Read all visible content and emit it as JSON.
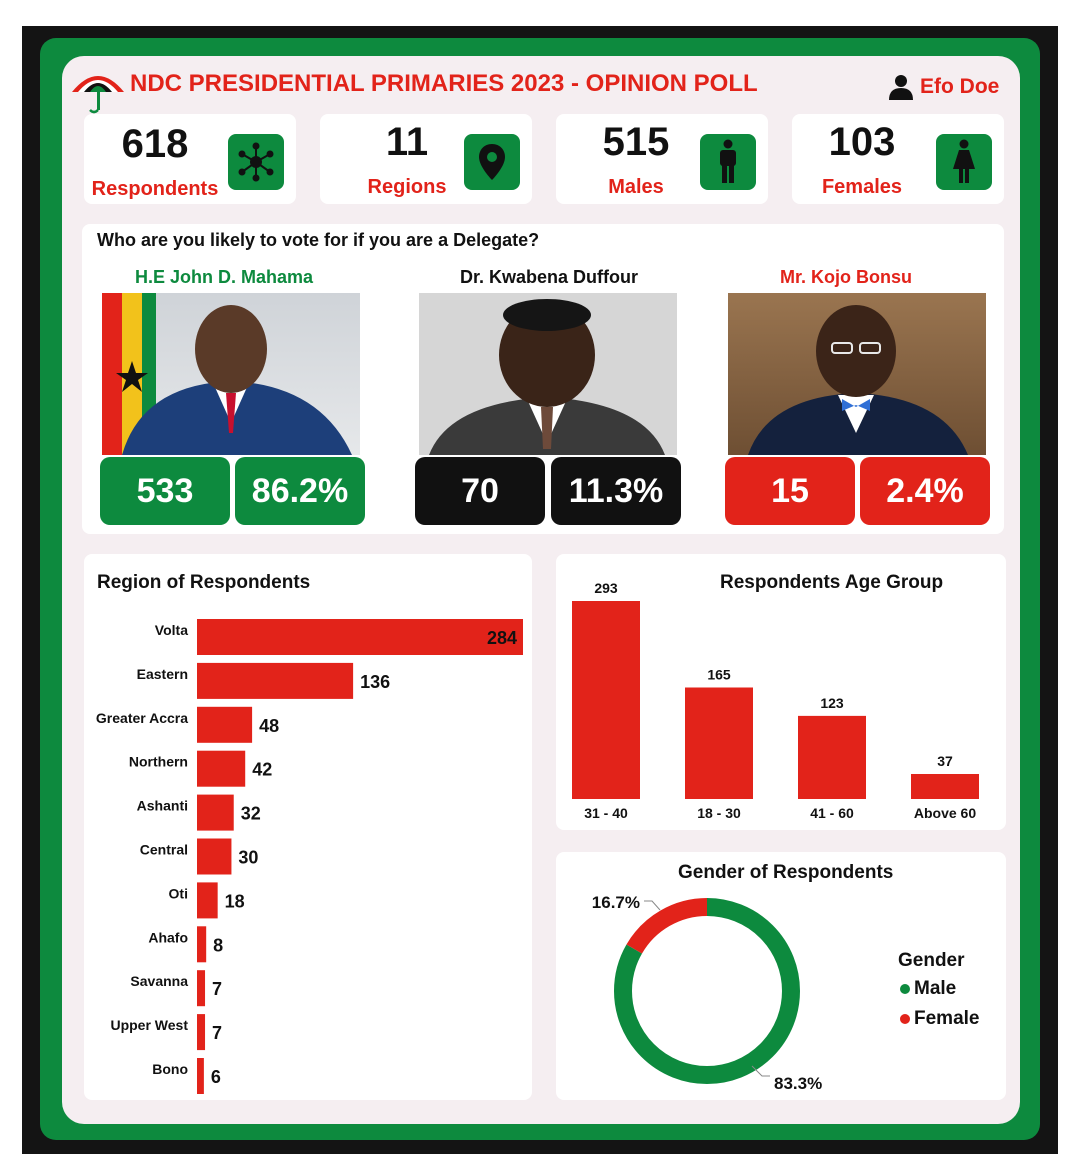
{
  "header": {
    "title": "NDC PRESIDENTIAL PRIMARIES 2023 - OPINION POLL",
    "user_name": "Efo Doe"
  },
  "kpis": [
    {
      "value": "618",
      "label": "Respondents",
      "icon": "network-icon"
    },
    {
      "value": "11",
      "label": "Regions",
      "icon": "map-pin-icon"
    },
    {
      "value": "515",
      "label": "Males",
      "icon": "male-icon"
    },
    {
      "value": "103",
      "label": "Females",
      "icon": "female-icon"
    }
  ],
  "question": "Who are you likely to vote for if you are a Delegate?",
  "candidates": [
    {
      "name": "H.E John D. Mahama",
      "votes": "533",
      "percent": "86.2%",
      "color": "#0d8a3e"
    },
    {
      "name": "Dr. Kwabena Duffour",
      "votes": "70",
      "percent": "11.3%",
      "color": "#111111"
    },
    {
      "name": "Mr. Kojo Bonsu",
      "votes": "15",
      "percent": "2.4%",
      "color": "#e2231a"
    }
  ],
  "colors": {
    "green": "#0d8a3e",
    "red": "#e2231a",
    "black": "#111111"
  },
  "chart_data": [
    {
      "type": "bar",
      "orientation": "horizontal",
      "title": "Region of Respondents",
      "categories": [
        "Volta",
        "Eastern",
        "Greater Accra",
        "Northern",
        "Ashanti",
        "Central",
        "Oti",
        "Ahafo",
        "Savanna",
        "Upper West",
        "Bono"
      ],
      "values": [
        284,
        136,
        48,
        42,
        32,
        30,
        18,
        8,
        7,
        7,
        6
      ],
      "color": "#e2231a"
    },
    {
      "type": "bar",
      "title": "Respondents Age Group",
      "categories": [
        "31 - 40",
        "18 - 30",
        "41 - 60",
        "Above 60"
      ],
      "values": [
        293,
        165,
        123,
        37
      ],
      "color": "#e2231a"
    },
    {
      "type": "pie",
      "title": "Gender of Respondents",
      "donut": true,
      "legend_title": "Gender",
      "legend_position": "right",
      "slices": [
        {
          "label": "Male",
          "value": 83.3,
          "display": "83.3%",
          "color": "#0d8a3e"
        },
        {
          "label": "Female",
          "value": 16.7,
          "display": "16.7%",
          "color": "#e2231a"
        }
      ]
    }
  ]
}
